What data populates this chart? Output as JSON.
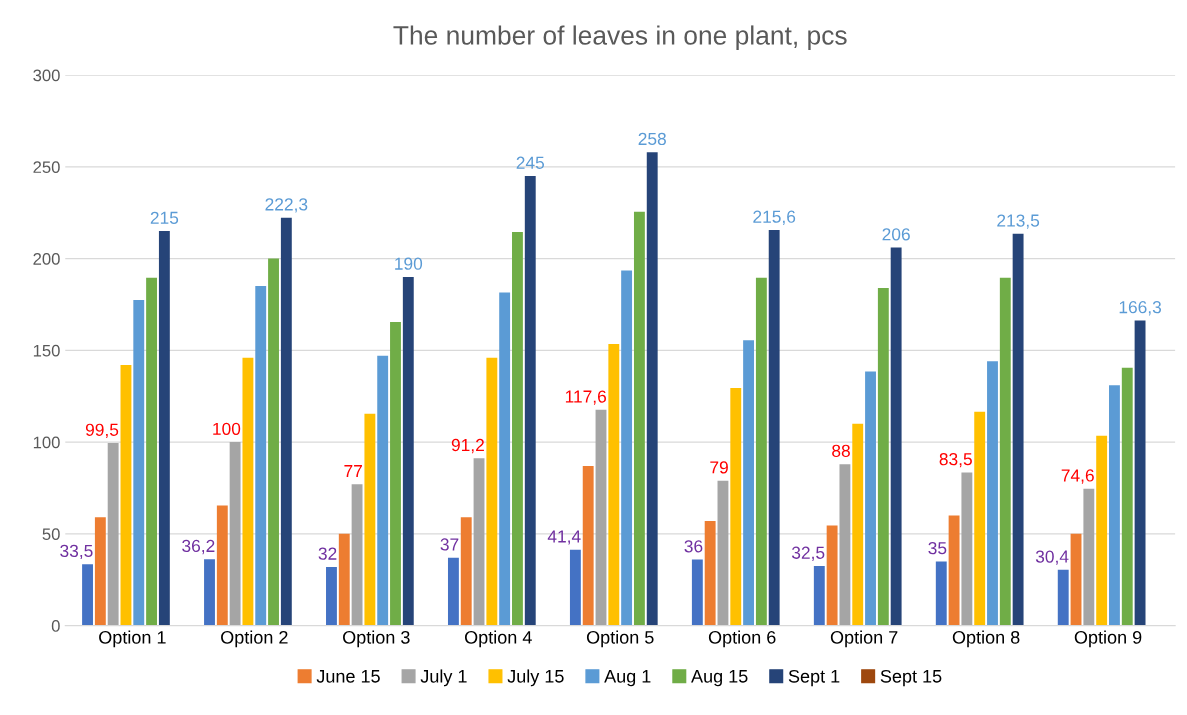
{
  "chart_data": {
    "type": "bar",
    "title": "The number of leaves in one plant, pcs",
    "categories": [
      "Option 1",
      "Option 2",
      "Option 3",
      "Option 4",
      "Option 5",
      "Option 6",
      "Option 7",
      "Option 8",
      "Option 9"
    ],
    "series": [
      {
        "color": "#4472c4",
        "values": [
          33.5,
          36.2,
          32,
          37,
          41.4,
          36,
          32.5,
          35,
          30.4
        ],
        "value_labels": [
          "33,5",
          "36,2",
          "32",
          "37",
          "41,4",
          "36",
          "32,5",
          "35",
          "30,4"
        ]
      },
      {
        "name": "June 15",
        "color": "#ed7d31",
        "values": [
          59,
          65.5,
          50,
          59,
          87,
          57,
          54.5,
          60,
          50
        ]
      },
      {
        "name": "July 1",
        "color": "#a5a5a5",
        "values": [
          99.5,
          100,
          77,
          91.2,
          117.6,
          79,
          88,
          83.5,
          74.6
        ],
        "value_labels": [
          "99,5",
          "100",
          "77",
          "91,2",
          "117,6",
          "79",
          "88",
          "83,5",
          "74,6"
        ]
      },
      {
        "name": "July 15",
        "color": "#ffc000",
        "values": [
          142,
          146,
          115.5,
          146,
          153.5,
          129.5,
          110,
          116.5,
          103.5
        ]
      },
      {
        "name": "Aug 1",
        "color": "#5b9bd5",
        "values": [
          177.5,
          185,
          147,
          181.5,
          193.5,
          155.5,
          138.5,
          144,
          131
        ]
      },
      {
        "name": "Aug 15",
        "color": "#70ad47",
        "values": [
          189.5,
          200,
          165.5,
          214.5,
          225.5,
          189.5,
          184,
          189.5,
          140.5
        ]
      },
      {
        "name": "Sept 1",
        "color": "#264478",
        "values": [
          215,
          222.3,
          190,
          245,
          258,
          215.6,
          206,
          213.5,
          166.3
        ],
        "value_labels": [
          "215",
          "222,3",
          "190",
          "245",
          "258",
          "215,6",
          "206",
          "213,5",
          "166,3"
        ]
      },
      {
        "name": "Sept 15",
        "color": "#9e480e",
        "values": [
          null,
          null,
          null,
          null,
          null,
          null,
          null,
          null,
          null
        ]
      }
    ],
    "ylim": [
      0,
      300
    ],
    "yticks": [
      0,
      50,
      100,
      150,
      200,
      250,
      300
    ],
    "grid": "y",
    "legend": "bottom"
  }
}
